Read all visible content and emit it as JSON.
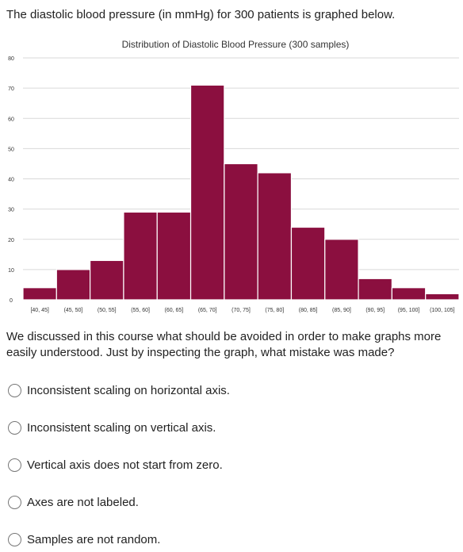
{
  "question_text": "The diastolic blood pressure (in mmHg) for 300 patients is graphed below.",
  "chart_data": {
    "type": "bar",
    "title": "Distribution of Diastolic Blood Pressure (300 samples)",
    "xlabel": "",
    "ylabel": "",
    "categories": [
      "[40, 45]",
      "(45, 50]",
      "(50, 55]",
      "(55, 60]",
      "(60, 65]",
      "(65, 70]",
      "(70, 75]",
      "(75, 80]",
      "(80, 85]",
      "(85, 90]",
      "(90, 95]",
      "(95, 100]",
      "(100, 105]"
    ],
    "values": [
      4,
      10,
      13,
      29,
      29,
      71,
      45,
      42,
      24,
      20,
      7,
      4,
      2
    ],
    "ylim": [
      0,
      80
    ],
    "yticks": [
      0,
      10,
      20,
      30,
      40,
      50,
      60,
      70,
      80
    ],
    "grid": true,
    "bar_color": "#8b0f3f",
    "bar_edge_color": "#ffffff"
  },
  "prompt_text": "We discussed in this course what should be avoided in order to make graphs more easily understood. Just by inspecting the graph, what mistake was made?",
  "options": [
    {
      "label": "Inconsistent scaling on horizontal axis."
    },
    {
      "label": "Inconsistent scaling on vertical axis."
    },
    {
      "label": "Vertical axis does not start from zero."
    },
    {
      "label": "Axes are not labeled."
    },
    {
      "label": "Samples are not random."
    }
  ]
}
